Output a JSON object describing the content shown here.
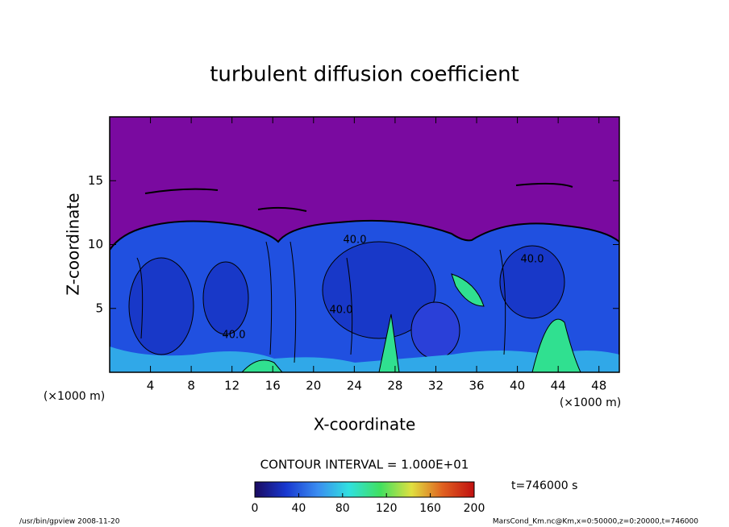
{
  "chart_data": {
    "type": "contour",
    "title": "turbulent diffusion coefficient",
    "xlabel": "X-coordinate",
    "ylabel": "Z-coordinate",
    "xunit": "(×1000 m)",
    "yunit": "(×1000 m)",
    "xlim": [
      0,
      50
    ],
    "xticks": [
      4,
      8,
      12,
      16,
      20,
      24,
      28,
      32,
      36,
      40,
      44,
      48
    ],
    "ylim": [
      0,
      20
    ],
    "yticks": [
      5,
      10,
      15
    ],
    "contour_labels": [
      "40.0",
      "40.0",
      "40.0",
      "40.0"
    ],
    "contour_interval": "CONTOUR INTERVAL = 1.000E+01",
    "time": "t=746000 s",
    "colorbar": {
      "lim": [
        0,
        200
      ],
      "ticks": [
        0,
        40,
        80,
        120,
        160,
        200
      ],
      "colors": [
        "#1a0a60",
        "#1838d0",
        "#3a8cf0",
        "#30e0e0",
        "#40e060",
        "#e0e040",
        "#e06020",
        "#c01010"
      ]
    },
    "footer_left": "/usr/bin/gpview   2008-11-20",
    "footer_right": "MarsCond_Km.nc@Km,x=0:50000,z=0:20000,t=746000"
  }
}
